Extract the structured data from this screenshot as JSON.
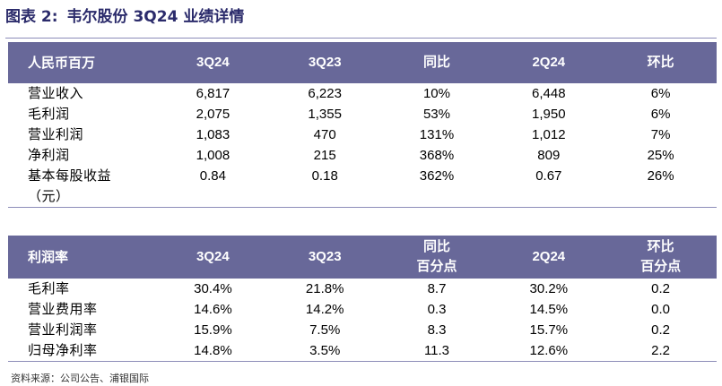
{
  "title": {
    "prefix": "图表 2:",
    "text": "韦尔股份 3Q24 业绩详情"
  },
  "table1": {
    "headers": [
      "人民币百万",
      "3Q24",
      "3Q23",
      "同比",
      "2Q24",
      "环比"
    ],
    "rows": [
      [
        "营业收入",
        "6,817",
        "6,223",
        "10%",
        "6,448",
        "6%"
      ],
      [
        "毛利润",
        "2,075",
        "1,355",
        "53%",
        "1,950",
        "6%"
      ],
      [
        "营业利润",
        "1,083",
        "470",
        "131%",
        "1,012",
        "7%"
      ],
      [
        "净利润",
        "1,008",
        "215",
        "368%",
        "809",
        "25%"
      ],
      [
        "基本每股收益",
        "0.84",
        "0.18",
        "362%",
        "0.67",
        "26%"
      ],
      [
        "（元）",
        "",
        "",
        "",
        "",
        ""
      ]
    ]
  },
  "table2": {
    "headers": [
      {
        "l1": "利润率",
        "l2": ""
      },
      {
        "l1": "3Q24",
        "l2": ""
      },
      {
        "l1": "3Q23",
        "l2": ""
      },
      {
        "l1": "同比",
        "l2": "百分点"
      },
      {
        "l1": "2Q24",
        "l2": ""
      },
      {
        "l1": "环比",
        "l2": "百分点"
      }
    ],
    "rows": [
      [
        "毛利率",
        "30.4%",
        "21.8%",
        "8.7",
        "30.2%",
        "0.2"
      ],
      [
        "营业费用率",
        "14.6%",
        "14.2%",
        "0.3",
        "14.5%",
        "0.0"
      ],
      [
        "营业利润率",
        "15.9%",
        "7.5%",
        "8.3",
        "15.7%",
        "0.2"
      ],
      [
        "归母净利率",
        "14.8%",
        "3.5%",
        "11.3",
        "12.6%",
        "2.2"
      ]
    ]
  },
  "source": "资料来源：公司公告、浦银国际",
  "colors": {
    "header_bg": "#686899",
    "title": "#2b2b6b",
    "rule": "#8c8cb8"
  }
}
